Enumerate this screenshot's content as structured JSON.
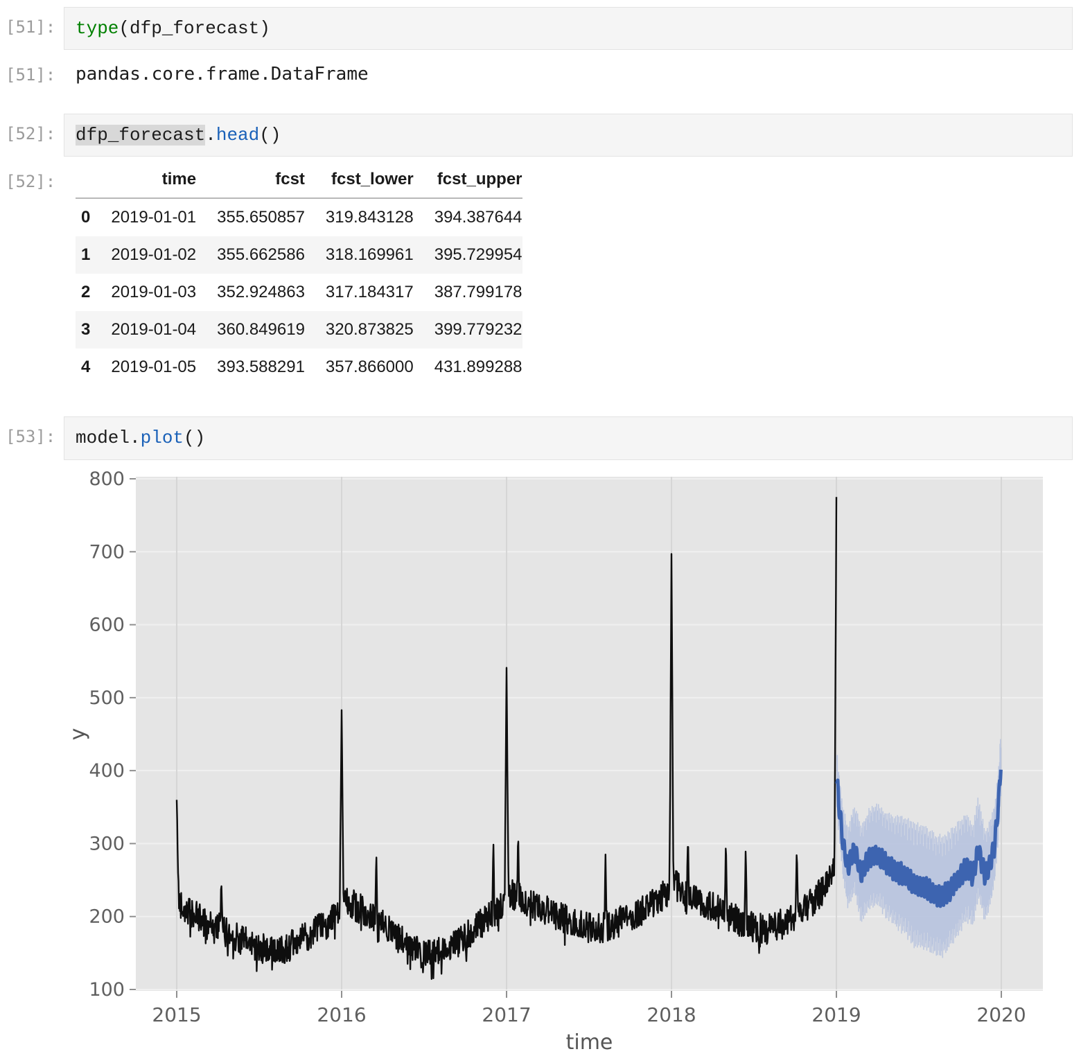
{
  "notebook": {
    "cells": [
      {
        "prompt": "[51]:",
        "code": [
          {
            "text": "type",
            "style": "builtin"
          },
          {
            "text": "(dfp_forecast)",
            "style": "plain"
          }
        ],
        "output": {
          "prompt": "[51]:",
          "text": "pandas.core.frame.DataFrame"
        }
      },
      {
        "prompt": "[52]:",
        "code": [
          {
            "text": "dfp_forecast",
            "style": "highlight"
          },
          {
            "text": ".",
            "style": "plain"
          },
          {
            "text": "head",
            "style": "function"
          },
          {
            "text": "()",
            "style": "plain"
          }
        ],
        "output": {
          "prompt": "[52]:"
        }
      },
      {
        "prompt": "[53]:",
        "code": [
          {
            "text": "model",
            "style": "plain"
          },
          {
            "text": ".",
            "style": "plain"
          },
          {
            "text": "plot",
            "style": "function"
          },
          {
            "text": "()",
            "style": "plain"
          }
        ]
      }
    ],
    "table": {
      "columns": [
        "time",
        "fcst",
        "fcst_lower",
        "fcst_upper"
      ],
      "rows": [
        {
          "index": "0",
          "cells": [
            "2019-01-01",
            "355.650857",
            "319.843128",
            "394.387644"
          ]
        },
        {
          "index": "1",
          "cells": [
            "2019-01-02",
            "355.662586",
            "318.169961",
            "395.729954"
          ]
        },
        {
          "index": "2",
          "cells": [
            "2019-01-03",
            "352.924863",
            "317.184317",
            "387.799178"
          ]
        },
        {
          "index": "3",
          "cells": [
            "2019-01-04",
            "360.849619",
            "320.873825",
            "399.779232"
          ]
        },
        {
          "index": "4",
          "cells": [
            "2019-01-05",
            "393.588291",
            "357.866000",
            "431.899288"
          ]
        }
      ]
    }
  },
  "chart_data": {
    "type": "line",
    "title": "",
    "xlabel": "time",
    "ylabel": "y",
    "x_ticks": [
      2015,
      2016,
      2017,
      2018,
      2019,
      2020
    ],
    "y_ticks": [
      100,
      200,
      300,
      400,
      500,
      600,
      700,
      800
    ],
    "xlim": [
      2014.752,
      2020.252
    ],
    "ylim": [
      100,
      800
    ],
    "grid": true,
    "legend": "none",
    "axes_background": "#e5e5e5",
    "grid_color_horizontal": "#f0f0f0",
    "grid_color_vertical": "#d6d6d6",
    "tick_label_color": "#5f5f5f",
    "axis_label_color": "#555555",
    "series": [
      {
        "name": "history",
        "role": "observed",
        "color": "#0e0e0e",
        "range_years": [
          2015.0,
          2019.0
        ],
        "monthly_level_anchors": [
          [
            2015.0,
            225
          ],
          [
            2015.08,
            205
          ],
          [
            2015.17,
            193
          ],
          [
            2015.25,
            185
          ],
          [
            2015.33,
            175
          ],
          [
            2015.42,
            165
          ],
          [
            2015.5,
            157
          ],
          [
            2015.58,
            152
          ],
          [
            2015.67,
            158
          ],
          [
            2015.75,
            167
          ],
          [
            2015.83,
            178
          ],
          [
            2015.92,
            192
          ],
          [
            2015.99,
            205
          ],
          [
            2016.01,
            228
          ],
          [
            2016.08,
            215
          ],
          [
            2016.17,
            202
          ],
          [
            2016.25,
            188
          ],
          [
            2016.33,
            172
          ],
          [
            2016.42,
            157
          ],
          [
            2016.5,
            147
          ],
          [
            2016.58,
            150
          ],
          [
            2016.67,
            160
          ],
          [
            2016.75,
            172
          ],
          [
            2016.83,
            188
          ],
          [
            2016.92,
            202
          ],
          [
            2016.99,
            215
          ],
          [
            2017.01,
            235
          ],
          [
            2017.08,
            225
          ],
          [
            2017.17,
            215
          ],
          [
            2017.25,
            207
          ],
          [
            2017.33,
            198
          ],
          [
            2017.42,
            190
          ],
          [
            2017.5,
            184
          ],
          [
            2017.58,
            185
          ],
          [
            2017.67,
            192
          ],
          [
            2017.75,
            200
          ],
          [
            2017.83,
            210
          ],
          [
            2017.92,
            222
          ],
          [
            2017.99,
            238
          ],
          [
            2018.01,
            245
          ],
          [
            2018.08,
            233
          ],
          [
            2018.17,
            222
          ],
          [
            2018.25,
            212
          ],
          [
            2018.33,
            203
          ],
          [
            2018.42,
            193
          ],
          [
            2018.5,
            184
          ],
          [
            2018.58,
            182
          ],
          [
            2018.67,
            190
          ],
          [
            2018.75,
            200
          ],
          [
            2018.83,
            215
          ],
          [
            2018.92,
            235
          ],
          [
            2018.99,
            262
          ]
        ],
        "new_year_spikes": [
          [
            2015.0,
            360
          ],
          [
            2016.0,
            483
          ],
          [
            2017.0,
            541
          ],
          [
            2018.0,
            697
          ],
          [
            2019.0,
            775
          ]
        ],
        "minor_spikes": [
          [
            2015.27,
            252
          ],
          [
            2016.21,
            293
          ],
          [
            2016.92,
            307
          ],
          [
            2017.07,
            317
          ],
          [
            2017.6,
            285
          ],
          [
            2018.1,
            312
          ],
          [
            2018.33,
            308
          ],
          [
            2018.45,
            300
          ],
          [
            2018.76,
            298
          ]
        ],
        "daily_noise": 21
      },
      {
        "name": "forecast",
        "role": "forecast",
        "color": "#3d64b0",
        "range_years": [
          2019.003,
          2020.0
        ],
        "level_anchors": [
          [
            2019.003,
            385
          ],
          [
            2019.015,
            355
          ],
          [
            2019.04,
            300
          ],
          [
            2019.07,
            268
          ],
          [
            2019.11,
            292
          ],
          [
            2019.15,
            258
          ],
          [
            2019.2,
            280
          ],
          [
            2019.25,
            285
          ],
          [
            2019.3,
            272
          ],
          [
            2019.36,
            262
          ],
          [
            2019.42,
            255
          ],
          [
            2019.48,
            242
          ],
          [
            2019.54,
            240
          ],
          [
            2019.6,
            230
          ],
          [
            2019.65,
            228
          ],
          [
            2019.7,
            240
          ],
          [
            2019.75,
            255
          ],
          [
            2019.79,
            268
          ],
          [
            2019.83,
            255
          ],
          [
            2019.86,
            295
          ],
          [
            2019.9,
            255
          ],
          [
            2019.93,
            270
          ],
          [
            2019.96,
            300
          ],
          [
            2019.985,
            360
          ],
          [
            2020.0,
            422
          ]
        ],
        "weekly_amplitude": 13,
        "band": {
          "color": "#b6c2de",
          "halfwidth_anchors": [
            [
              2019.003,
              35
            ],
            [
              2019.05,
              45
            ],
            [
              2019.15,
              58
            ],
            [
              2019.3,
              62
            ],
            [
              2019.5,
              75
            ],
            [
              2019.7,
              70
            ],
            [
              2019.85,
              60
            ],
            [
              2019.95,
              48
            ],
            [
              2020.0,
              40
            ]
          ]
        }
      }
    ]
  }
}
